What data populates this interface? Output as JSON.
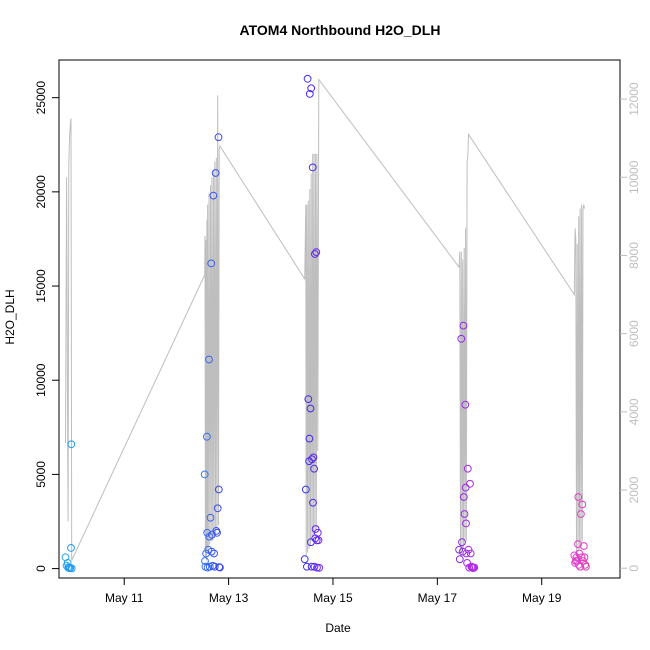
{
  "chart_data": {
    "type": "scatter",
    "title": "ATOM4 Northbound H2O_DLH",
    "xlabel": "Date",
    "ylabel": "H2O_DLH",
    "x_ticks": [
      "May 11",
      "May 13",
      "May 15",
      "May 17",
      "May 19"
    ],
    "y_ticks": [
      "0",
      "5000",
      "10000",
      "15000",
      "20000",
      "25000"
    ],
    "y_right_ticks": [
      "0",
      "2000",
      "4000",
      "6000",
      "8000",
      "10000",
      "12000"
    ],
    "xlim": [
      "2018-05-09 18:00",
      "2018-05-20 12:00"
    ],
    "ylim": [
      -500,
      27000
    ],
    "y_right_lim": [
      -250,
      13000
    ],
    "grid": false,
    "colors": {
      "axis": "#000000",
      "secondary_axis": "#bebebe",
      "line": "#bebebe"
    },
    "series": [
      {
        "type": "scatter",
        "points": [
          {
            "x": "2018-05-09 21:00",
            "y": 600,
            "color": "#30a8f0"
          },
          {
            "x": "2018-05-09 21:30",
            "y": 150,
            "color": "#2ea6f0"
          },
          {
            "x": "2018-05-09 22:00",
            "y": 300,
            "color": "#2ca4f0"
          },
          {
            "x": "2018-05-09 22:10",
            "y": 50,
            "color": "#2aa2f0"
          },
          {
            "x": "2018-05-09 22:30",
            "y": 80,
            "color": "#28a0f0"
          },
          {
            "x": "2018-05-09 22:50",
            "y": 20,
            "color": "#269ef0"
          },
          {
            "x": "2018-05-09 23:10",
            "y": 30,
            "color": "#249cf0"
          },
          {
            "x": "2018-05-09 23:30",
            "y": 1100,
            "color": "#229af0"
          },
          {
            "x": "2018-05-09 23:40",
            "y": 6600,
            "color": "#2098f0"
          },
          {
            "x": "2018-05-09 23:50",
            "y": 10,
            "color": "#1e96f0"
          },
          {
            "x": "2018-05-12 13:00",
            "y": 5000,
            "color": "#3a78f0"
          },
          {
            "x": "2018-05-12 13:10",
            "y": 400,
            "color": "#3a76f0"
          },
          {
            "x": "2018-05-12 13:20",
            "y": 100,
            "color": "#3a74f0"
          },
          {
            "x": "2018-05-12 13:40",
            "y": 800,
            "color": "#3a72f0"
          },
          {
            "x": "2018-05-12 14:00",
            "y": 7000,
            "color": "#3a70f0"
          },
          {
            "x": "2018-05-12 14:10",
            "y": 1900,
            "color": "#3a6ef0"
          },
          {
            "x": "2018-05-12 14:20",
            "y": 50,
            "color": "#3a6cf0"
          },
          {
            "x": "2018-05-12 14:40",
            "y": 1000,
            "color": "#3a6af0"
          },
          {
            "x": "2018-05-12 15:00",
            "y": 11100,
            "color": "#3a68f0"
          },
          {
            "x": "2018-05-12 15:10",
            "y": 1700,
            "color": "#3a66f0"
          },
          {
            "x": "2018-05-12 15:20",
            "y": 100,
            "color": "#3a64f0"
          },
          {
            "x": "2018-05-12 15:40",
            "y": 2700,
            "color": "#3a62f0"
          },
          {
            "x": "2018-05-12 16:00",
            "y": 16200,
            "color": "#3a60f0"
          },
          {
            "x": "2018-05-12 16:10",
            "y": 900,
            "color": "#3a5ef0"
          },
          {
            "x": "2018-05-12 16:20",
            "y": 1800,
            "color": "#3a5cf0"
          },
          {
            "x": "2018-05-12 16:40",
            "y": 150,
            "color": "#3a5af0"
          },
          {
            "x": "2018-05-12 17:00",
            "y": 19800,
            "color": "#3a58f0"
          },
          {
            "x": "2018-05-12 17:20",
            "y": 800,
            "color": "#3a56f0"
          },
          {
            "x": "2018-05-12 17:40",
            "y": 100,
            "color": "#3a54f0"
          },
          {
            "x": "2018-05-12 18:00",
            "y": 21000,
            "color": "#3a52f0"
          },
          {
            "x": "2018-05-12 18:20",
            "y": 2000,
            "color": "#3a50f0"
          },
          {
            "x": "2018-05-12 18:40",
            "y": 1900,
            "color": "#3a4ef0"
          },
          {
            "x": "2018-05-12 19:00",
            "y": 3200,
            "color": "#3a4cf0"
          },
          {
            "x": "2018-05-12 19:20",
            "y": 22900,
            "color": "#3a4af0"
          },
          {
            "x": "2018-05-12 19:30",
            "y": 4200,
            "color": "#3a48f0"
          },
          {
            "x": "2018-05-12 19:40",
            "y": 80,
            "color": "#3a46f0"
          },
          {
            "x": "2018-05-12 20:00",
            "y": 60,
            "color": "#3a44f0"
          },
          {
            "x": "2018-05-14 11:00",
            "y": 500,
            "color": "#3a36f0"
          },
          {
            "x": "2018-05-14 11:30",
            "y": 4200,
            "color": "#3c34f0"
          },
          {
            "x": "2018-05-14 12:00",
            "y": 100,
            "color": "#3e32f0"
          },
          {
            "x": "2018-05-14 12:20",
            "y": 26000,
            "color": "#4030f0"
          },
          {
            "x": "2018-05-14 12:40",
            "y": 9000,
            "color": "#422ef0"
          },
          {
            "x": "2018-05-14 13:00",
            "y": 5700,
            "color": "#442cf0"
          },
          {
            "x": "2018-05-14 13:10",
            "y": 6900,
            "color": "#462af0"
          },
          {
            "x": "2018-05-14 13:20",
            "y": 25200,
            "color": "#4828f0"
          },
          {
            "x": "2018-05-14 13:40",
            "y": 8500,
            "color": "#4a28f0"
          },
          {
            "x": "2018-05-14 13:50",
            "y": 1400,
            "color": "#4c28f0"
          },
          {
            "x": "2018-05-14 14:00",
            "y": 25500,
            "color": "#4e28f0"
          },
          {
            "x": "2018-05-14 14:10",
            "y": 100,
            "color": "#5028f0"
          },
          {
            "x": "2018-05-14 14:20",
            "y": 5800,
            "color": "#5228f0"
          },
          {
            "x": "2018-05-14 14:40",
            "y": 21300,
            "color": "#5428f0"
          },
          {
            "x": "2018-05-14 14:50",
            "y": 3500,
            "color": "#5628f0"
          },
          {
            "x": "2018-05-14 15:00",
            "y": 5900,
            "color": "#5828f0"
          },
          {
            "x": "2018-05-14 15:20",
            "y": 5300,
            "color": "#5a28f0"
          },
          {
            "x": "2018-05-14 15:30",
            "y": 100,
            "color": "#5c28f0"
          },
          {
            "x": "2018-05-14 15:40",
            "y": 16700,
            "color": "#5e28f0"
          },
          {
            "x": "2018-05-14 15:50",
            "y": 1600,
            "color": "#6028f0"
          },
          {
            "x": "2018-05-14 16:00",
            "y": 2100,
            "color": "#6228f0"
          },
          {
            "x": "2018-05-14 16:20",
            "y": 16800,
            "color": "#6428f0"
          },
          {
            "x": "2018-05-14 16:30",
            "y": 1500,
            "color": "#6628f0"
          },
          {
            "x": "2018-05-14 16:40",
            "y": 50,
            "color": "#6828f0"
          },
          {
            "x": "2018-05-14 17:00",
            "y": 1900,
            "color": "#6a28f0"
          },
          {
            "x": "2018-05-14 17:20",
            "y": 1500,
            "color": "#6c28f0"
          },
          {
            "x": "2018-05-14 17:40",
            "y": 40,
            "color": "#6e28f0"
          },
          {
            "x": "2018-05-17 10:00",
            "y": 1000,
            "color": "#8a2ae8"
          },
          {
            "x": "2018-05-17 10:20",
            "y": 500,
            "color": "#8c2ae8"
          },
          {
            "x": "2018-05-17 11:00",
            "y": 12200,
            "color": "#8e2ae8"
          },
          {
            "x": "2018-05-17 11:20",
            "y": 1400,
            "color": "#902ae8"
          },
          {
            "x": "2018-05-17 11:40",
            "y": 900,
            "color": "#922ae8"
          },
          {
            "x": "2018-05-17 12:00",
            "y": 12900,
            "color": "#942ae8"
          },
          {
            "x": "2018-05-17 12:10",
            "y": 3800,
            "color": "#962ae8"
          },
          {
            "x": "2018-05-17 12:30",
            "y": 2900,
            "color": "#982ae8"
          },
          {
            "x": "2018-05-17 12:50",
            "y": 8700,
            "color": "#9a2ae8"
          },
          {
            "x": "2018-05-17 13:00",
            "y": 4300,
            "color": "#9c2ae8"
          },
          {
            "x": "2018-05-17 13:10",
            "y": 2400,
            "color": "#9e2ae8"
          },
          {
            "x": "2018-05-17 13:20",
            "y": 800,
            "color": "#a02ae8"
          },
          {
            "x": "2018-05-17 13:40",
            "y": 300,
            "color": "#a22ae8"
          },
          {
            "x": "2018-05-17 14:00",
            "y": 5300,
            "color": "#a42ae8"
          },
          {
            "x": "2018-05-17 14:20",
            "y": 1000,
            "color": "#a62ae8"
          },
          {
            "x": "2018-05-17 14:40",
            "y": 50,
            "color": "#a82ae8"
          },
          {
            "x": "2018-05-17 15:00",
            "y": 4500,
            "color": "#aa2ae8"
          },
          {
            "x": "2018-05-17 15:20",
            "y": 800,
            "color": "#ac2ae8"
          },
          {
            "x": "2018-05-17 15:40",
            "y": 100,
            "color": "#ae2ae8"
          },
          {
            "x": "2018-05-17 16:00",
            "y": 60,
            "color": "#b02ae8"
          },
          {
            "x": "2018-05-17 16:20",
            "y": 30,
            "color": "#b22ae8"
          },
          {
            "x": "2018-05-17 16:40",
            "y": 30,
            "color": "#b42ae8"
          },
          {
            "x": "2018-05-17 17:00",
            "y": 60,
            "color": "#b62ae8"
          },
          {
            "x": "2018-05-19 15:00",
            "y": 700,
            "color": "#e23cd8"
          },
          {
            "x": "2018-05-19 15:20",
            "y": 300,
            "color": "#e23cd6"
          },
          {
            "x": "2018-05-19 15:40",
            "y": 400,
            "color": "#e23cd4"
          },
          {
            "x": "2018-05-19 16:00",
            "y": 600,
            "color": "#e23cd2"
          },
          {
            "x": "2018-05-19 16:20",
            "y": 400,
            "color": "#e23cd0"
          },
          {
            "x": "2018-05-19 16:40",
            "y": 1300,
            "color": "#e23cce"
          },
          {
            "x": "2018-05-19 16:50",
            "y": 3800,
            "color": "#e23ccc"
          },
          {
            "x": "2018-05-19 17:00",
            "y": 200,
            "color": "#e23cca"
          },
          {
            "x": "2018-05-19 17:20",
            "y": 800,
            "color": "#e23cc8"
          },
          {
            "x": "2018-05-19 17:40",
            "y": 100,
            "color": "#e23cc6"
          },
          {
            "x": "2018-05-19 18:00",
            "y": 2900,
            "color": "#e23cc4"
          },
          {
            "x": "2018-05-19 18:20",
            "y": 600,
            "color": "#e23cc2"
          },
          {
            "x": "2018-05-19 18:40",
            "y": 3400,
            "color": "#e23cc0"
          },
          {
            "x": "2018-05-19 19:00",
            "y": 400,
            "color": "#e23cbe"
          },
          {
            "x": "2018-05-19 19:20",
            "y": 1200,
            "color": "#e23cbc"
          },
          {
            "x": "2018-05-19 19:40",
            "y": 600,
            "color": "#e23cba"
          },
          {
            "x": "2018-05-19 20:00",
            "y": 200,
            "color": "#e23cb8"
          },
          {
            "x": "2018-05-19 20:20",
            "y": 100,
            "color": "#e23cb6"
          }
        ]
      },
      {
        "type": "line",
        "color": "#bebebe",
        "axis": "right",
        "points": [
          [
            "2018-05-09 21:00",
            3200
          ],
          [
            "2018-05-09 21:30",
            10000
          ],
          [
            "2018-05-09 22:00",
            3000
          ],
          [
            "2018-05-09 22:10",
            1200
          ],
          [
            "2018-05-09 22:30",
            10300
          ],
          [
            "2018-05-09 22:50",
            11000
          ],
          [
            "2018-05-09 23:10",
            11300
          ],
          [
            "2018-05-09 23:30",
            11500
          ],
          [
            "2018-05-09 23:50",
            200
          ],
          [
            "2018-05-12 13:00",
            7500
          ],
          [
            "2018-05-12 13:10",
            8500
          ],
          [
            "2018-05-12 13:20",
            300
          ],
          [
            "2018-05-12 13:30",
            8400
          ],
          [
            "2018-05-12 13:50",
            200
          ],
          [
            "2018-05-12 14:00",
            8900
          ],
          [
            "2018-05-12 14:10",
            400
          ],
          [
            "2018-05-12 14:20",
            9300
          ],
          [
            "2018-05-12 14:40",
            500
          ],
          [
            "2018-05-12 15:00",
            9600
          ],
          [
            "2018-05-12 15:20",
            600
          ],
          [
            "2018-05-12 15:40",
            9800
          ],
          [
            "2018-05-12 16:00",
            700
          ],
          [
            "2018-05-12 16:20",
            10000
          ],
          [
            "2018-05-12 16:40",
            700
          ],
          [
            "2018-05-12 17:00",
            10200
          ],
          [
            "2018-05-12 17:20",
            800
          ],
          [
            "2018-05-12 17:40",
            10400
          ],
          [
            "2018-05-12 18:00",
            900
          ],
          [
            "2018-05-12 18:20",
            10500
          ],
          [
            "2018-05-12 18:40",
            1000
          ],
          [
            "2018-05-12 19:00",
            12100
          ],
          [
            "2018-05-12 19:20",
            1100
          ],
          [
            "2018-05-12 19:40",
            10700
          ],
          [
            "2018-05-12 20:00",
            10800
          ],
          [
            "2018-05-14 11:00",
            7400
          ],
          [
            "2018-05-14 11:30",
            9300
          ],
          [
            "2018-05-14 11:40",
            300
          ],
          [
            "2018-05-14 12:00",
            9300
          ],
          [
            "2018-05-14 12:20",
            400
          ],
          [
            "2018-05-14 12:40",
            9400
          ],
          [
            "2018-05-14 13:00",
            500
          ],
          [
            "2018-05-14 13:20",
            9700
          ],
          [
            "2018-05-14 13:40",
            600
          ],
          [
            "2018-05-14 14:00",
            10100
          ],
          [
            "2018-05-14 14:20",
            700
          ],
          [
            "2018-05-14 14:40",
            10600
          ],
          [
            "2018-05-14 15:00",
            800
          ],
          [
            "2018-05-14 15:20",
            10600
          ],
          [
            "2018-05-14 15:40",
            900
          ],
          [
            "2018-05-14 16:00",
            10600
          ],
          [
            "2018-05-14 16:20",
            1000
          ],
          [
            "2018-05-14 16:40",
            10600
          ],
          [
            "2018-05-14 17:00",
            3000
          ],
          [
            "2018-05-14 17:30",
            12500
          ],
          [
            "2018-05-17 10:00",
            7700
          ],
          [
            "2018-05-17 10:20",
            8100
          ],
          [
            "2018-05-17 10:40",
            300
          ],
          [
            "2018-05-17 11:00",
            8100
          ],
          [
            "2018-05-17 11:20",
            400
          ],
          [
            "2018-05-17 11:40",
            7900
          ],
          [
            "2018-05-17 12:00",
            500
          ],
          [
            "2018-05-17 12:20",
            8200
          ],
          [
            "2018-05-17 12:40",
            600
          ],
          [
            "2018-05-17 13:00",
            8700
          ],
          [
            "2018-05-17 13:20",
            700
          ],
          [
            "2018-05-17 13:40",
            10400
          ],
          [
            "2018-05-17 14:00",
            10500
          ],
          [
            "2018-05-17 14:20",
            11100
          ],
          [
            "2018-05-19 15:00",
            7000
          ],
          [
            "2018-05-19 15:20",
            8700
          ],
          [
            "2018-05-19 15:40",
            8400
          ],
          [
            "2018-05-19 16:00",
            300
          ],
          [
            "2018-05-19 16:20",
            8300
          ],
          [
            "2018-05-19 16:40",
            400
          ],
          [
            "2018-05-19 17:00",
            9000
          ],
          [
            "2018-05-19 17:20",
            500
          ],
          [
            "2018-05-19 17:40",
            9200
          ],
          [
            "2018-05-19 18:00",
            600
          ],
          [
            "2018-05-19 18:20",
            9300
          ],
          [
            "2018-05-19 18:40",
            700
          ],
          [
            "2018-05-19 19:00",
            9200
          ],
          [
            "2018-05-19 19:20",
            9300
          ],
          [
            "2018-05-19 19:40",
            9200
          ]
        ]
      }
    ]
  }
}
